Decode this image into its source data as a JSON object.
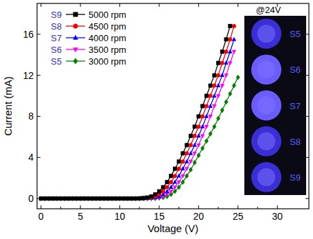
{
  "chart_data": {
    "type": "line",
    "x_label": "Voltage (V)",
    "y_label": "Current (mA)",
    "xlim": [
      -0.5,
      34
    ],
    "ylim": [
      -1,
      19
    ],
    "xticks": [
      0,
      5,
      10,
      15,
      20,
      25,
      30
    ],
    "yticks": [
      0,
      4,
      8,
      12,
      16
    ],
    "legend": "upper left",
    "x": [
      0,
      0.5,
      1,
      1.5,
      2,
      2.5,
      3,
      3.5,
      4,
      4.5,
      5,
      5.5,
      6,
      6.5,
      7,
      7.5,
      8,
      8.5,
      9,
      9.5,
      10,
      10.5,
      11,
      11.5,
      12,
      12.5,
      13,
      13.5,
      14,
      14.5,
      15,
      15.5,
      16,
      16.5,
      17,
      17.5,
      18,
      18.5,
      19,
      19.5,
      20,
      20.5,
      21,
      21.5,
      22,
      22.5,
      23,
      23.5,
      24,
      24.5,
      25
    ],
    "series": [
      {
        "name": "5000 rpm",
        "sample": "S9",
        "color": "#000000",
        "marker": "square",
        "values": [
          0,
          0,
          0,
          0,
          0,
          0,
          0,
          0,
          0,
          0,
          0,
          0,
          0,
          0,
          0,
          0,
          0,
          0,
          0,
          0,
          0,
          0,
          0,
          0,
          0,
          0.02,
          0.05,
          0.1,
          0.2,
          0.4,
          0.7,
          1.1,
          1.6,
          2.2,
          2.9,
          3.6,
          4.4,
          5.2,
          6.1,
          7.0,
          8.0,
          9.0,
          10.0,
          11.0,
          12.0,
          13.2,
          14.3,
          15.5,
          16.8,
          null,
          null
        ]
      },
      {
        "name": "4500 rpm",
        "sample": "S8",
        "color": "#ff0000",
        "marker": "circle",
        "values": [
          0,
          0,
          0,
          0,
          0,
          0,
          0,
          0,
          0,
          0,
          0,
          0,
          0,
          0,
          0,
          0,
          0,
          0,
          0,
          0,
          0,
          0,
          0,
          0,
          0,
          0,
          0.02,
          0.05,
          0.1,
          0.2,
          0.4,
          0.7,
          1.1,
          1.6,
          2.2,
          2.9,
          3.6,
          4.4,
          5.2,
          6.1,
          7.0,
          8.0,
          9.0,
          10.0,
          11.0,
          12.0,
          13.2,
          14.3,
          15.5,
          16.8,
          null
        ]
      },
      {
        "name": "4000 rpm",
        "sample": "S7",
        "color": "#0000ff",
        "marker": "triangle",
        "values": [
          0,
          0,
          0,
          0,
          0,
          0,
          0,
          0,
          0,
          0,
          0,
          0,
          0,
          0,
          0,
          0,
          0,
          0,
          0,
          0,
          0,
          0,
          0,
          0,
          0,
          0,
          0,
          0.02,
          0.05,
          0.1,
          0.2,
          0.4,
          0.7,
          1.1,
          1.6,
          2.2,
          2.9,
          3.6,
          4.4,
          5.2,
          6.1,
          7.0,
          8.0,
          9.0,
          10.0,
          11.0,
          12.0,
          13.2,
          14.3,
          15.5,
          null
        ]
      },
      {
        "name": "3500 rpm",
        "sample": "S6",
        "color": "#ff00ff",
        "marker": "triangle_down",
        "values": [
          0,
          0,
          0,
          0,
          0,
          0,
          0,
          0,
          0,
          0,
          0,
          0,
          0,
          0,
          0,
          0,
          0,
          0,
          0,
          0,
          0,
          0,
          0,
          0,
          0,
          0,
          0,
          0,
          0.02,
          0.05,
          0.1,
          0.2,
          0.4,
          0.7,
          1.1,
          1.6,
          2.2,
          2.9,
          3.6,
          4.4,
          5.2,
          6.1,
          7.0,
          8.0,
          9.0,
          10.0,
          11.0,
          12.0,
          13.2,
          14.3,
          null
        ]
      },
      {
        "name": "3000 rpm",
        "sample": "S5",
        "color": "#008000",
        "marker": "diamond",
        "values": [
          0,
          0,
          0,
          0,
          0,
          0,
          0,
          0,
          0,
          0,
          0,
          0,
          0,
          0,
          0,
          0,
          0,
          0,
          0,
          0,
          0,
          0,
          0,
          0,
          0,
          0,
          0,
          0,
          0,
          0,
          0.05,
          0.1,
          0.2,
          0.4,
          0.7,
          1.1,
          1.6,
          2.2,
          2.8,
          3.5,
          4.2,
          4.9,
          5.6,
          6.3,
          7.0,
          7.8,
          8.6,
          9.4,
          10.2,
          11.0,
          11.8
        ]
      }
    ],
    "inset": {
      "title": "@24V",
      "labels": [
        "S5",
        "S6",
        "S7",
        "S8",
        "S9"
      ]
    }
  }
}
